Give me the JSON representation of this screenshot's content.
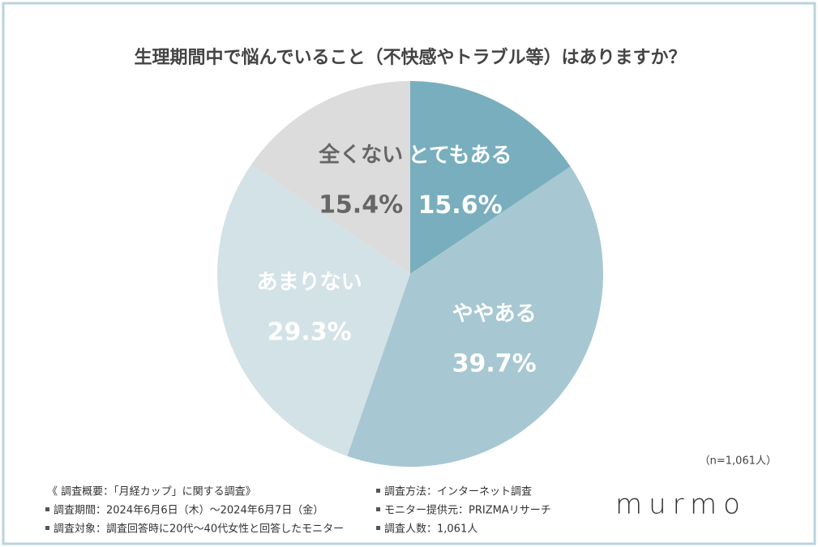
{
  "chart_data": {
    "type": "pie",
    "title": "生理期間中で悩んでいること（不快感やトラブル等）はありますか？",
    "categories": [
      "とてもある",
      "ややある",
      "あまりない",
      "全くない"
    ],
    "values": [
      15.6,
      39.7,
      29.3,
      15.4
    ],
    "value_labels": [
      "15.6%",
      "39.7%",
      "29.3%",
      "15.4%"
    ],
    "colors": [
      "#78aebd",
      "#a7c8d2",
      "#d3e2e7",
      "#dcdcdc"
    ],
    "label_colors": [
      "#ffffff",
      "#ffffff",
      "#ffffff",
      "#666666"
    ],
    "sample_size": "（n=1,061人）"
  },
  "footer": {
    "heading": "《 調査概要：「月経カップ」に関する調査》",
    "left": [
      "調査期間：2024年6月6日（木）〜2024年6月7日（金）",
      "調査対象：調査回答時に20代〜40代女性と回答したモニター"
    ],
    "right": [
      "調査方法：インターネット調査",
      "モニター提供元：PRIZMAリサーチ",
      "調査人数：1,061人"
    ],
    "brand": "murmo"
  }
}
